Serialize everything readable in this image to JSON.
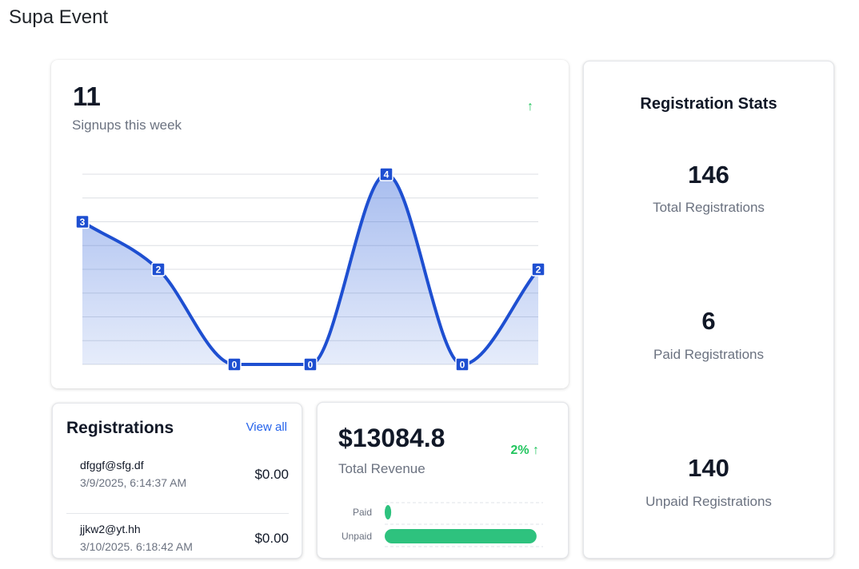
{
  "app": {
    "title": "Supa Event"
  },
  "signups": {
    "value": "11",
    "label": "Signups this week",
    "trend_icon": "arrow-up-icon",
    "trend_symbol": "↑"
  },
  "chart_data": [
    {
      "type": "area",
      "x": [
        1,
        2,
        3,
        4,
        5,
        6,
        7
      ],
      "series": [
        {
          "values": [
            3,
            2,
            0,
            0,
            4,
            0,
            2
          ]
        }
      ],
      "data_labels": [
        "3",
        "2",
        "0",
        "0",
        "4",
        "0",
        "2"
      ],
      "ylim": [
        0,
        4
      ],
      "grid": true,
      "line_color": "#1e4fd1",
      "fill_color": "#2f62d9"
    },
    {
      "type": "bar",
      "orientation": "horizontal",
      "categories": [
        "Paid",
        "Unpaid"
      ],
      "values": [
        6,
        140
      ],
      "xlim": [
        0,
        146
      ],
      "bar_color": "#2ec27e",
      "grid": true
    }
  ],
  "stats": {
    "title": "Registration Stats",
    "items": [
      {
        "value": "146",
        "label": "Total Registrations"
      },
      {
        "value": "6",
        "label": "Paid Registrations"
      },
      {
        "value": "140",
        "label": "Unpaid Registrations"
      }
    ]
  },
  "registrations": {
    "title": "Registrations",
    "view_all": "View all",
    "items": [
      {
        "email": "dfggf@sfg.df",
        "date": "3/9/2025, 6:14:37 AM",
        "amount": "$0.00"
      },
      {
        "email": "jjkw2@yt.hh",
        "date": "3/10/2025, 6:18:42 AM",
        "amount": "$0.00"
      }
    ]
  },
  "revenue": {
    "value": "$13084.8",
    "label": "Total Revenue",
    "trend": "2% ↑",
    "trend_icon": "arrow-up-icon"
  },
  "colors": {
    "accent": "#1e4fd1",
    "positive": "#22c55e",
    "link": "#2563eb"
  }
}
